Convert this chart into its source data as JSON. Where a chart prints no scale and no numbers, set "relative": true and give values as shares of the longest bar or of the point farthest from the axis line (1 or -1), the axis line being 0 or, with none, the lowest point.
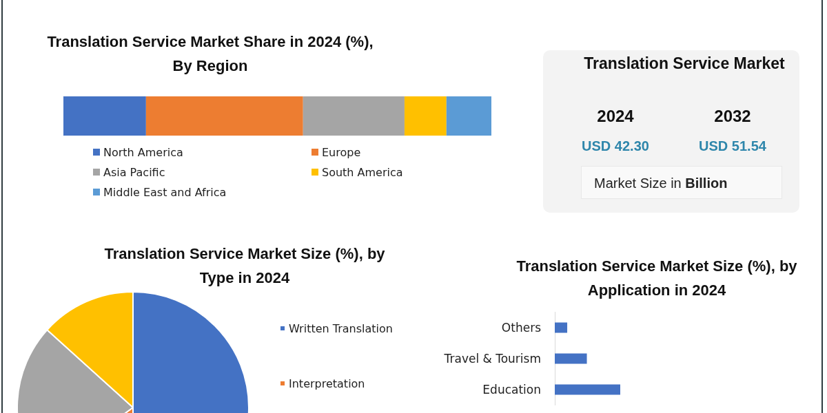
{
  "chart_data": [
    {
      "type": "bar",
      "title": "Translation Service Market Share in 2024 (%),\nBy Region",
      "orientation": "horizontal",
      "stacked": true,
      "relative": true,
      "categories": [
        null
      ],
      "legend": "bottom",
      "series": [
        {
          "name": "North America",
          "color": "#4472c4",
          "values": [
            0.193
          ]
        },
        {
          "name": "Europe",
          "color": "#ed7d31",
          "values": [
            0.367
          ]
        },
        {
          "name": "Asia Pacific",
          "color": "#a5a5a5",
          "values": [
            0.237
          ]
        },
        {
          "name": "South America",
          "color": "#ffc000",
          "values": [
            0.098
          ]
        },
        {
          "name": "Middle East and Africa",
          "color": "#5b9bd5",
          "values": [
            0.105
          ]
        }
      ]
    },
    {
      "type": "pie",
      "title": "Translation Service Market Size (%), by\nType in 2024",
      "legend": "right",
      "categories": [
        "Written Translation",
        "Interpretation",
        null,
        null
      ],
      "values": [
        50,
        15,
        21.7,
        13.3
      ],
      "colors": [
        "#4472c4",
        "#ed7d31",
        "#a5a5a5",
        "#ffc000"
      ]
    },
    {
      "type": "bar",
      "title": "Translation Service Market Size (%), by\nApplication in 2024",
      "orientation": "horizontal",
      "relative": true,
      "categories": [
        "Others",
        "Travel & Tourism",
        "Education"
      ],
      "values": [
        0.19,
        0.49,
        1
      ],
      "color": "#4472c4"
    },
    {
      "type": "other",
      "title": "Translation Service Market",
      "annotations": [
        "2024",
        "USD 42.30",
        "2032",
        "USD 51.54",
        "Market Size in Billion"
      ]
    }
  ]
}
